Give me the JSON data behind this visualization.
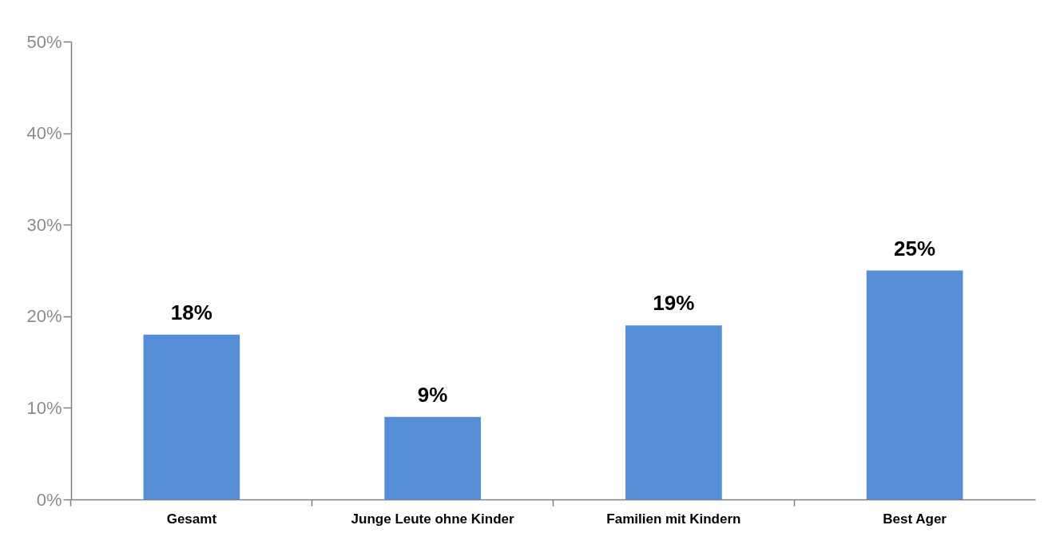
{
  "chart_data": {
    "type": "bar",
    "categories": [
      "Gesamt",
      "Junge Leute ohne Kinder",
      "Familien mit Kindern",
      "Best Ager"
    ],
    "values": [
      18,
      9,
      19,
      25
    ],
    "value_labels": [
      "18%",
      "9%",
      "19%",
      "25%"
    ],
    "color": "#558ed5",
    "ylim": [
      0,
      50
    ],
    "yticks": [
      {
        "value": 0,
        "label": "0%"
      },
      {
        "value": 10,
        "label": "10%"
      },
      {
        "value": 20,
        "label": "20%"
      },
      {
        "value": 30,
        "label": "30%"
      },
      {
        "value": 40,
        "label": "40%"
      },
      {
        "value": 50,
        "label": "50%"
      }
    ],
    "grid": false
  }
}
